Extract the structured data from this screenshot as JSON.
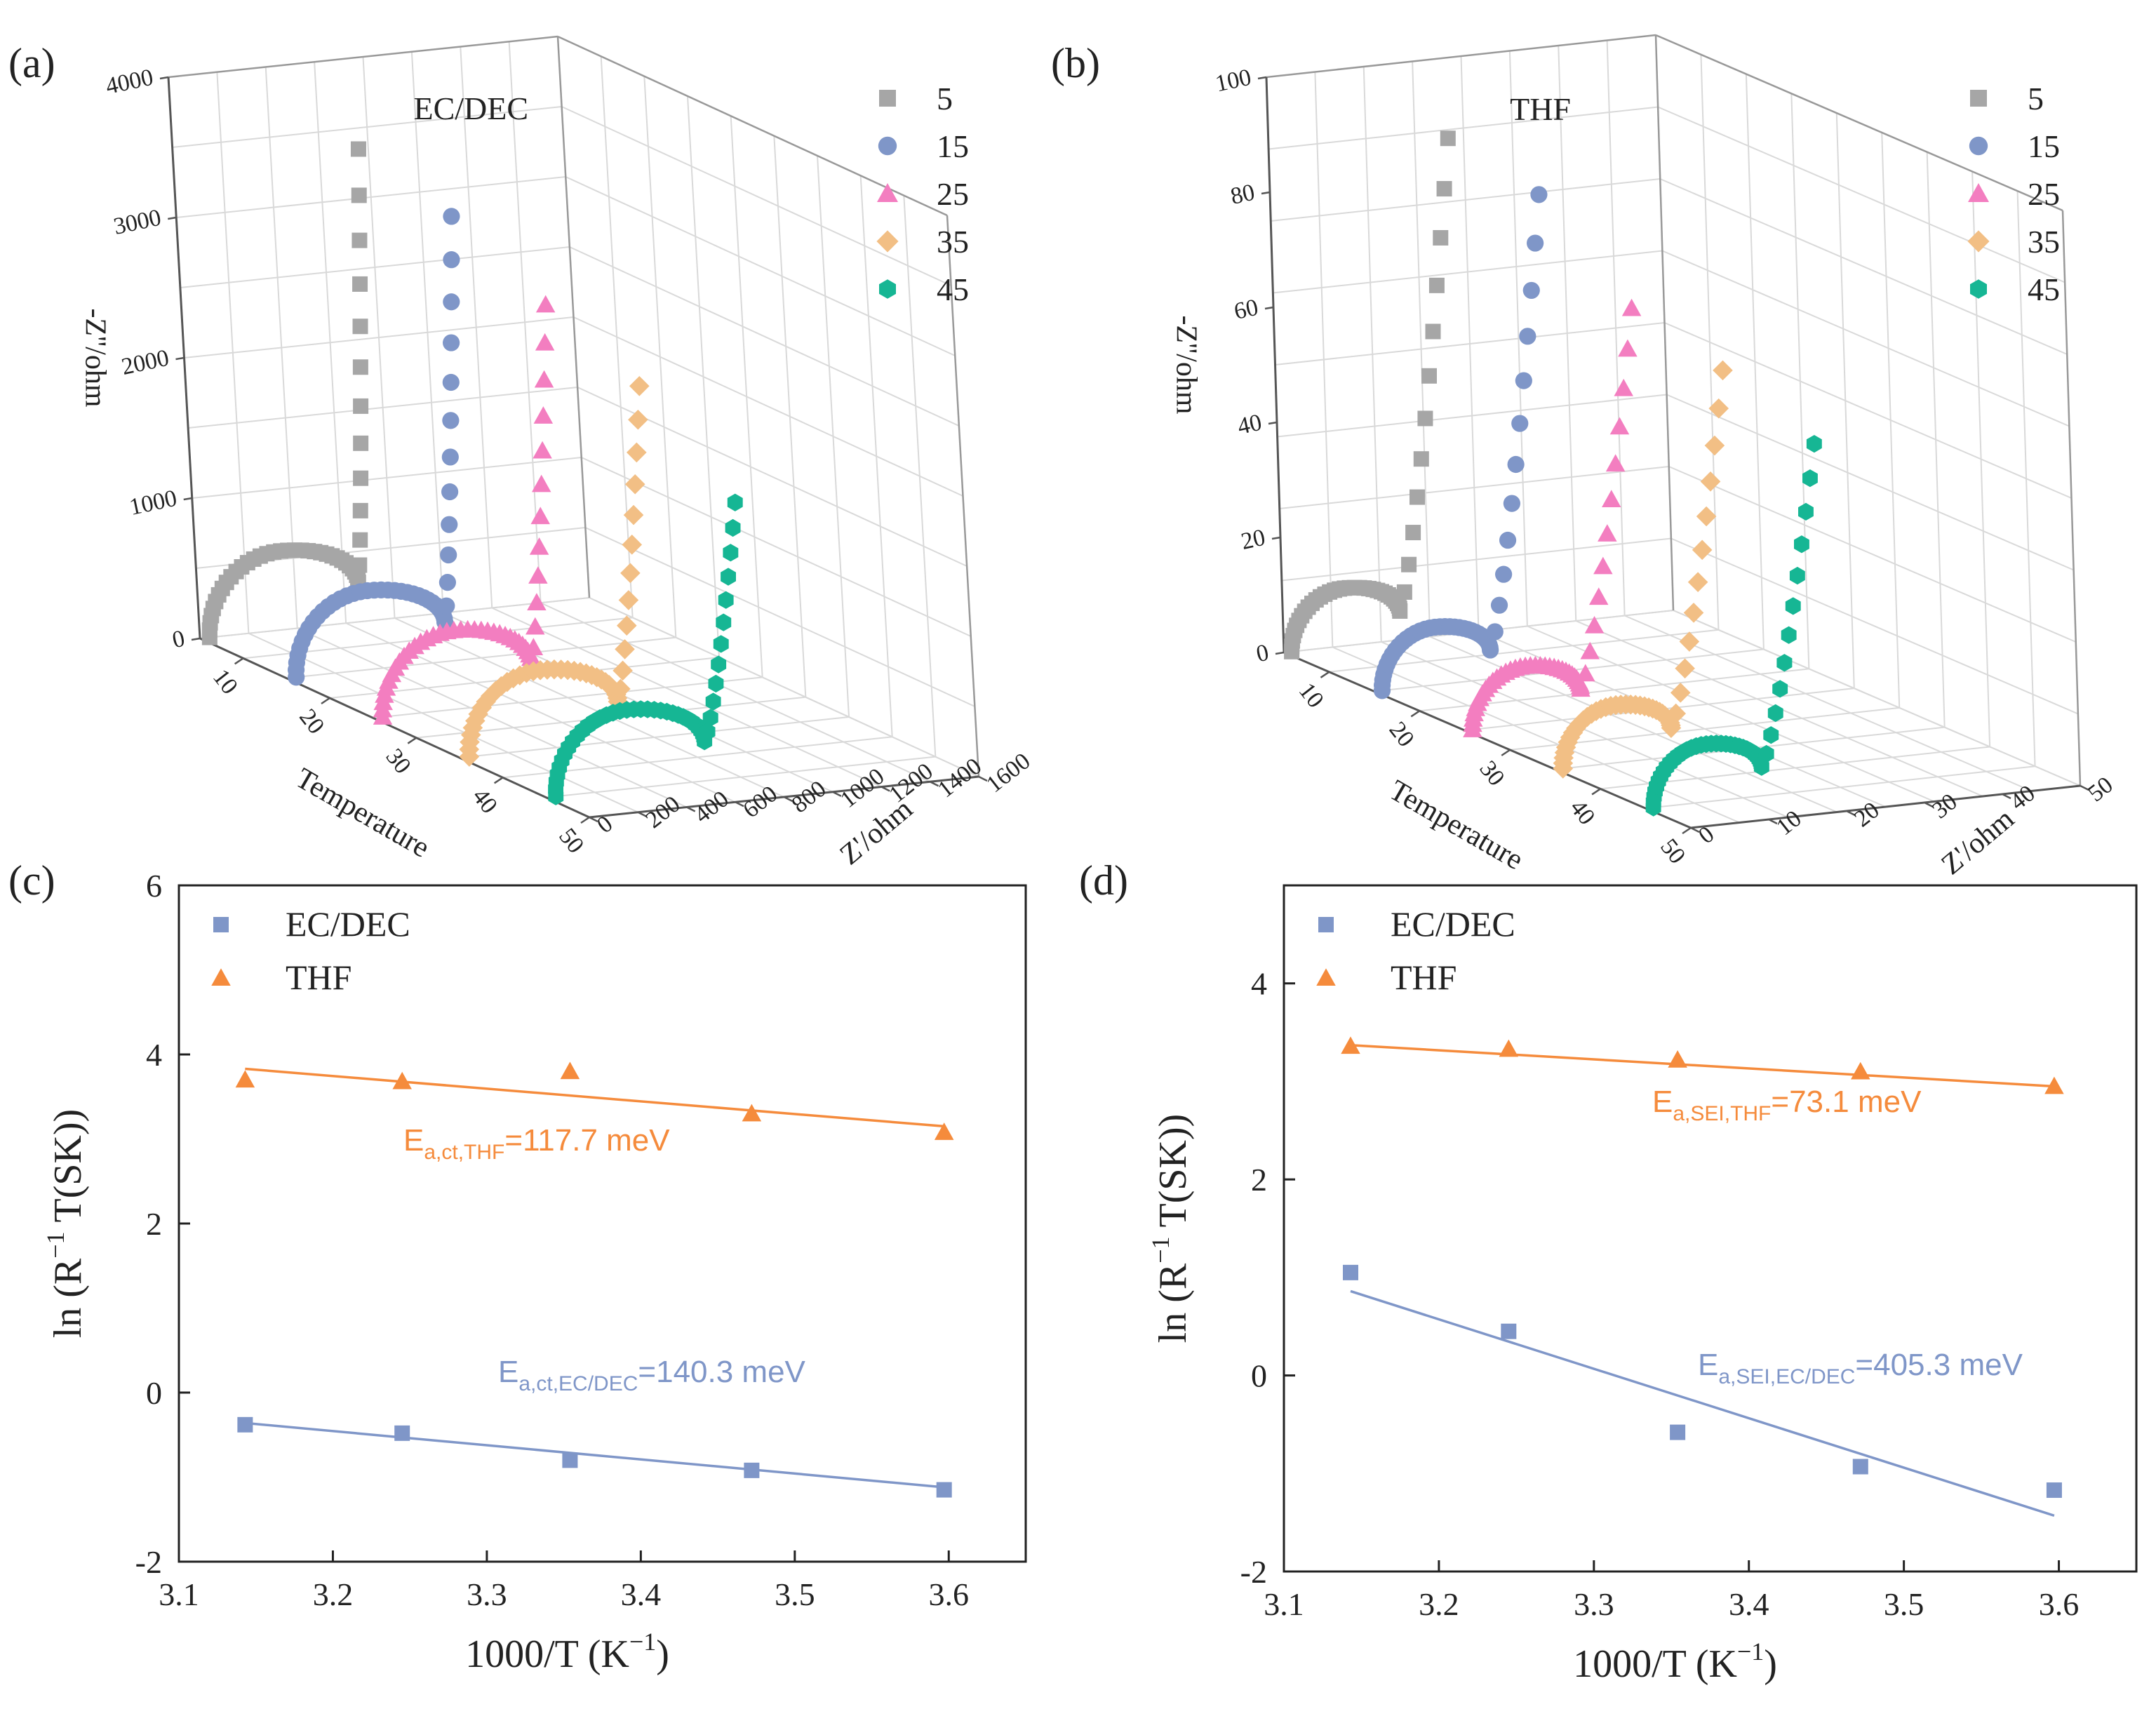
{
  "chart_data": [
    {
      "id": "a",
      "type": "scatter3d",
      "panel_label": "(a)",
      "title": "EC/DEC",
      "xlabel": "Temperature",
      "ylabel": "Z'/ohm",
      "zlabel": "-Z''/ohm",
      "xticks": [
        "10",
        "20",
        "30",
        "40",
        "50"
      ],
      "yticks": [
        "0",
        "200",
        "400",
        "600",
        "800",
        "1000",
        "1200",
        "1400",
        "1600"
      ],
      "zticks": [
        "0",
        "1000",
        "2000",
        "3000",
        "4000"
      ],
      "xlim": [
        5,
        50
      ],
      "ylim": [
        0,
        1600
      ],
      "zlim": [
        0,
        4000
      ],
      "series": [
        {
          "name": "5",
          "temperature": 5,
          "marker": "square",
          "color": "#a6a6a6",
          "r0": 40,
          "arc_width": 620,
          "arc_height": 560,
          "tail_end_x": 760,
          "tail_end_z": 3350
        },
        {
          "name": "15",
          "temperature": 15,
          "marker": "circle",
          "color": "#7f96c8",
          "r0": 40,
          "arc_width": 620,
          "arc_height": 560,
          "tail_end_x": 780,
          "tail_end_z": 3150
        },
        {
          "name": "25",
          "temperature": 25,
          "marker": "triangle",
          "color": "#f37ec0",
          "r0": 40,
          "arc_width": 620,
          "arc_height": 560,
          "tail_end_x": 800,
          "tail_end_z": 2800
        },
        {
          "name": "35",
          "temperature": 35,
          "marker": "diamond",
          "color": "#f2bf85",
          "r0": 40,
          "arc_width": 620,
          "arc_height": 560,
          "tail_end_x": 820,
          "tail_end_z": 2500
        },
        {
          "name": "45",
          "temperature": 45,
          "marker": "hexagon",
          "color": "#16b694",
          "r0": 40,
          "arc_width": 620,
          "arc_height": 560,
          "tail_end_x": 840,
          "tail_end_z": 1950
        }
      ]
    },
    {
      "id": "b",
      "type": "scatter3d",
      "panel_label": "(b)",
      "title": "THF",
      "xlabel": "Temperature",
      "ylabel": "Z'/ohm",
      "zlabel": "-Z''/ohm",
      "xticks": [
        "10",
        "20",
        "30",
        "40",
        "50"
      ],
      "yticks": [
        "0",
        "10",
        "20",
        "30",
        "40",
        "50"
      ],
      "zticks": [
        "0",
        "20",
        "40",
        "60",
        "80",
        "100"
      ],
      "xlim": [
        5,
        50
      ],
      "ylim": [
        0,
        50
      ],
      "zlim": [
        0,
        100
      ],
      "series": [
        {
          "name": "5",
          "temperature": 5,
          "marker": "square",
          "color": "#a6a6a6",
          "r0": 1,
          "arc_width": 14,
          "arc_height": 10,
          "tail_end_x": 23,
          "tail_end_z": 86
        },
        {
          "name": "15",
          "temperature": 15,
          "marker": "circle",
          "color": "#7f96c8",
          "r0": 1,
          "arc_width": 14,
          "arc_height": 10,
          "tail_end_x": 23,
          "tail_end_z": 83
        },
        {
          "name": "25",
          "temperature": 25,
          "marker": "triangle",
          "color": "#f37ec0",
          "r0": 1,
          "arc_width": 14,
          "arc_height": 10,
          "tail_end_x": 23,
          "tail_end_z": 70
        },
        {
          "name": "35",
          "temperature": 35,
          "marker": "diamond",
          "color": "#f2bf85",
          "r0": 1,
          "arc_width": 14,
          "arc_height": 10,
          "tail_end_x": 23,
          "tail_end_z": 66
        },
        {
          "name": "45",
          "temperature": 45,
          "marker": "hexagon",
          "color": "#16b694",
          "r0": 1,
          "arc_width": 14,
          "arc_height": 10,
          "tail_end_x": 23,
          "tail_end_z": 60
        }
      ]
    },
    {
      "id": "c",
      "type": "scatter",
      "panel_label": "(c)",
      "xlabel": "1000/T (K",
      "xlabel_sup": "−1",
      "xlabel_close": ")",
      "ylabel": "ln (R",
      "ylabel_sup": "−1",
      "ylabel_rest": " T(SK))",
      "xlim": [
        3.1,
        3.65
      ],
      "ylim": [
        -2,
        6
      ],
      "xticks": [
        "3.1",
        "3.2",
        "3.3",
        "3.4",
        "3.5",
        "3.6"
      ],
      "yticks": [
        "-2",
        "0",
        "2",
        "4",
        "6"
      ],
      "legend": [
        "EC/DEC",
        "THF"
      ],
      "series": [
        {
          "name": "EC/DEC",
          "marker": "square",
          "color": "#7f96c8",
          "x": [
            3.143,
            3.245,
            3.354,
            3.472,
            3.597
          ],
          "y": [
            -0.38,
            -0.48,
            -0.8,
            -0.92,
            -1.15
          ],
          "fit": [
            [
              3.143,
              -0.36
            ],
            [
              3.597,
              -1.12
            ]
          ],
          "annotation": {
            "base": "E",
            "sub": "a,ct,EC/DEC",
            "value": "=140.3 meV"
          }
        },
        {
          "name": "THF",
          "marker": "triangle",
          "color": "#f58b3c",
          "x": [
            3.143,
            3.245,
            3.354,
            3.472,
            3.597
          ],
          "y": [
            3.7,
            3.68,
            3.8,
            3.3,
            3.08
          ],
          "fit": [
            [
              3.143,
              3.83
            ],
            [
              3.597,
              3.15
            ]
          ],
          "annotation": {
            "base": "E",
            "sub": "a,ct,THF",
            "value": "=117.7 meV"
          }
        }
      ]
    },
    {
      "id": "d",
      "type": "scatter",
      "panel_label": "(d)",
      "xlabel": "1000/T (K",
      "xlabel_sup": "−1",
      "xlabel_close": ")",
      "ylabel": "ln (R",
      "ylabel_sup": "−1",
      "ylabel_rest": " T(SK))",
      "xlim": [
        3.1,
        3.65
      ],
      "ylim": [
        -2,
        5
      ],
      "xticks": [
        "3.1",
        "3.2",
        "3.3",
        "3.4",
        "3.5",
        "3.6"
      ],
      "yticks": [
        "-2",
        "0",
        "2",
        "4"
      ],
      "legend": [
        "EC/DEC",
        "THF"
      ],
      "series": [
        {
          "name": "EC/DEC",
          "marker": "square",
          "color": "#7f96c8",
          "x": [
            3.143,
            3.245,
            3.354,
            3.472,
            3.597
          ],
          "y": [
            1.05,
            0.45,
            -0.58,
            -0.93,
            -1.17
          ],
          "fit": [
            [
              3.143,
              0.86
            ],
            [
              3.597,
              -1.43
            ]
          ],
          "annotation": {
            "base": "E",
            "sub": "a,SEI,EC/DEC",
            "value": "=405.3 meV"
          }
        },
        {
          "name": "THF",
          "marker": "triangle",
          "color": "#f58b3c",
          "x": [
            3.143,
            3.245,
            3.354,
            3.472,
            3.597
          ],
          "y": [
            3.36,
            3.33,
            3.22,
            3.1,
            2.95
          ],
          "fit": [
            [
              3.143,
              3.37
            ],
            [
              3.597,
              2.95
            ]
          ],
          "annotation": {
            "base": "E",
            "sub": "a,SEI,THF",
            "value": "=73.1 meV"
          }
        }
      ]
    }
  ]
}
